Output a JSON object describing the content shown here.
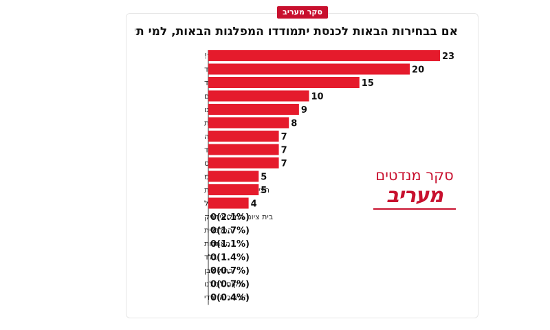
{
  "badge": "סקר מעריב",
  "title": "אם בבחירות הבאות לכנסת יתמודדו המפלגות הבאות, למי תצביע?",
  "logo": {
    "line1": "סקר מנדטים",
    "line2": "מעריב"
  },
  "colors": {
    "bar": "#e51b2c",
    "accent": "#c8102e"
  },
  "chart_data": {
    "type": "bar",
    "orientation": "horizontal",
    "categories": [
      "ישר!",
      "הליכוד",
      "ביחד",
      "הדמוקרטים",
      "ישראל ביתנו",
      "עוצמה יהודית",
      "יהדות התורה",
      "איחוד חדש תעל ובלד",
      "שס",
      "רעמ",
      "הציונות הדתית וזהות",
      "עתך ישראל",
      "בית ציוני המילואימניק",
      "הכלכלית",
      "האחדות",
      "בלד",
      "כחול לבן",
      "מקום לכולנו",
      "הציבור החרדי"
    ],
    "values": [
      23,
      20,
      15,
      10,
      9,
      8,
      7,
      7,
      7,
      5,
      5,
      4,
      0,
      0,
      0,
      0,
      0,
      0,
      0
    ],
    "value_labels": [
      "23",
      "20",
      "15",
      "10",
      "9",
      "8",
      "7",
      "7",
      "7",
      "5",
      "5",
      "4",
      "0(2.1%)",
      "0(1.7%)",
      "0(1.1%)",
      "0(1.4%)",
      "0(0.7%)",
      "0(0.7%)",
      "0(0.4%)"
    ],
    "xlim": [
      0,
      23
    ],
    "grid": false,
    "legend": "none"
  }
}
